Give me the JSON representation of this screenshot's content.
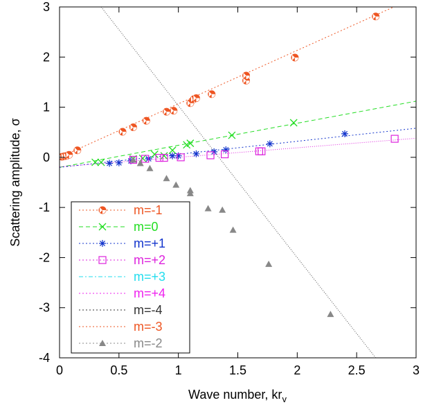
{
  "chart_data": {
    "type": "scatter",
    "xlabel": "Wave number, kr",
    "xlabel_sub": "v",
    "ylabel": "Scattering amplitude, σ",
    "xlim": [
      0,
      3
    ],
    "ylim": [
      -4,
      3
    ],
    "x_ticks": [
      "0",
      "0.5",
      "1",
      "1.5",
      "2",
      "2.5",
      "3"
    ],
    "y_ticks": [
      "3",
      "2",
      "1",
      "0",
      "-1",
      "-2",
      "-3",
      "-4"
    ],
    "grid": false,
    "legend_position": "bottom-left",
    "series": [
      {
        "name": "m=-1",
        "color": "#ee5522",
        "marker": "circle-half",
        "line": "dotted",
        "points": [
          [
            0.02,
            0.01
          ],
          [
            0.04,
            0.02
          ],
          [
            0.06,
            0.03
          ],
          [
            0.08,
            0.05
          ],
          [
            0.15,
            0.14
          ],
          [
            0.53,
            0.51
          ],
          [
            0.62,
            0.6
          ],
          [
            0.73,
            0.73
          ],
          [
            0.9,
            0.91
          ],
          [
            0.96,
            0.93
          ],
          [
            1.1,
            1.08
          ],
          [
            1.13,
            1.16
          ],
          [
            1.15,
            1.18
          ],
          [
            1.28,
            1.26
          ],
          [
            1.57,
            1.53
          ],
          [
            1.57,
            1.63
          ],
          [
            1.98,
            1.99
          ],
          [
            2.66,
            2.81
          ]
        ]
      },
      {
        "name": "m=0",
        "color": "#22dd22",
        "marker": "x",
        "line": "dashed",
        "points": [
          [
            0.3,
            -0.1
          ],
          [
            0.35,
            -0.1
          ],
          [
            0.62,
            -0.03
          ],
          [
            0.7,
            -0.02
          ],
          [
            0.8,
            0.06
          ],
          [
            0.88,
            0.03
          ],
          [
            0.95,
            0.14
          ],
          [
            1.07,
            0.25
          ],
          [
            1.1,
            0.28
          ],
          [
            1.45,
            0.44
          ],
          [
            1.97,
            0.69
          ]
        ]
      },
      {
        "name": "m=+1",
        "color": "#1133cc",
        "marker": "star",
        "line": "dotted",
        "points": [
          [
            0.42,
            -0.12
          ],
          [
            0.5,
            -0.11
          ],
          [
            0.6,
            -0.07
          ],
          [
            0.75,
            -0.03
          ],
          [
            0.95,
            0.03
          ],
          [
            1.0,
            0.03
          ],
          [
            1.15,
            0.07
          ],
          [
            1.3,
            0.11
          ],
          [
            1.4,
            0.15
          ],
          [
            1.77,
            0.27
          ],
          [
            2.4,
            0.47
          ]
        ]
      },
      {
        "name": "m=+2",
        "color": "#dd22dd",
        "marker": "square",
        "line": "dotted",
        "points": [
          [
            0.62,
            -0.05
          ],
          [
            0.72,
            -0.03
          ],
          [
            0.84,
            -0.01
          ],
          [
            0.88,
            -0.01
          ],
          [
            1.02,
            0.0
          ],
          [
            1.27,
            0.04
          ],
          [
            1.39,
            0.06
          ],
          [
            1.68,
            0.12
          ],
          [
            1.7,
            0.12
          ],
          [
            2.82,
            0.37
          ]
        ]
      },
      {
        "name": "m=+3",
        "color": "#22ddee",
        "marker": "none",
        "line": "dashdot",
        "points": []
      },
      {
        "name": "m=+4",
        "color": "#ee22ee",
        "marker": "none",
        "line": "dotted",
        "points": []
      },
      {
        "name": "m=-4",
        "color": "#333333",
        "marker": "none",
        "line": "dotted",
        "points": []
      },
      {
        "name": "m=-3",
        "color": "#ee5522",
        "marker": "none",
        "line": "dotted",
        "points": []
      },
      {
        "name": "m=-2",
        "color": "#888888",
        "marker": "triangle",
        "line": "dotted",
        "points": [
          [
            0.62,
            -0.05
          ],
          [
            0.68,
            -0.12
          ],
          [
            0.76,
            -0.22
          ],
          [
            0.9,
            -0.42
          ],
          [
            0.98,
            -0.55
          ],
          [
            1.1,
            -0.66
          ],
          [
            1.1,
            -0.72
          ],
          [
            1.25,
            -1.02
          ],
          [
            1.37,
            -1.05
          ],
          [
            1.46,
            -1.45
          ],
          [
            1.76,
            -2.13
          ],
          [
            2.28,
            -3.13
          ]
        ]
      }
    ],
    "fit_lines": [
      {
        "series": "m=-1",
        "color": "#ee5522",
        "dash": "2,3",
        "from": [
          0,
          0.0
        ],
        "to": [
          3,
          3.2
        ]
      },
      {
        "series": "m=0",
        "color": "#22dd22",
        "dash": "6,4",
        "from": [
          0,
          -0.2
        ],
        "to": [
          3,
          1.12
        ]
      },
      {
        "series": "m=+1",
        "color": "#1133cc",
        "dash": "2,3",
        "from": [
          0,
          -0.2
        ],
        "to": [
          3,
          0.58
        ]
      },
      {
        "series": "m=+2",
        "color": "#dd22dd",
        "dash": "1,2",
        "from": [
          0,
          -0.19
        ],
        "to": [
          3,
          0.38
        ]
      },
      {
        "series": "m=-4",
        "color": "#555555",
        "dash": "1,2",
        "from": [
          0.35,
          3.0
        ],
        "to": [
          2.66,
          -4.0
        ]
      }
    ]
  }
}
